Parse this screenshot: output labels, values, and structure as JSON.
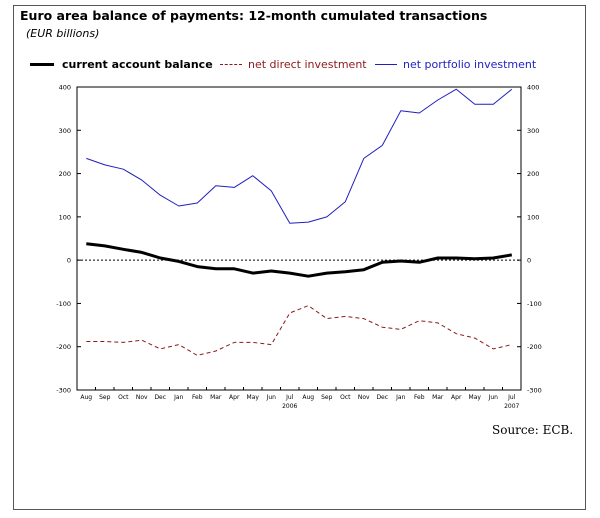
{
  "title": "Euro area balance of payments: 12-month cumulated transactions",
  "subtitle": "(EUR billions)",
  "source": "Source: ECB.",
  "colors": {
    "current_account": "#000000",
    "direct_investment": "#8b1a1a",
    "portfolio_investment": "#1f1fbf"
  },
  "chart_data": {
    "type": "line",
    "title": "Euro area balance of payments: 12-month cumulated transactions",
    "subtitle": "(EUR billions)",
    "x": [
      "Aug",
      "Sep",
      "Oct",
      "Nov",
      "Dec",
      "Jan",
      "Feb",
      "Mar",
      "Apr",
      "May",
      "Jun",
      "Jul",
      "Aug",
      "Sep",
      "Oct",
      "Nov",
      "Dec",
      "Jan",
      "Feb",
      "Mar",
      "Apr",
      "May",
      "Jun",
      "Jul"
    ],
    "year_labels": [
      {
        "label": "2006",
        "index": 11
      },
      {
        "label": "2007",
        "index": 23
      }
    ],
    "ylim": [
      -300,
      400
    ],
    "yticks": [
      -300,
      -200,
      -100,
      0,
      100,
      200,
      300,
      400
    ],
    "grid": false,
    "zero_line": "dotted",
    "legend_position": "top",
    "series": [
      {
        "name": "current account balance",
        "style": "solid-thick",
        "values": [
          38,
          33,
          25,
          18,
          5,
          -3,
          -15,
          -20,
          -20,
          -30,
          -25,
          -30,
          -37,
          -30,
          -27,
          -22,
          -5,
          -2,
          -5,
          5,
          5,
          3,
          5,
          12
        ]
      },
      {
        "name": "net direct investment",
        "style": "dashed",
        "values": [
          -188,
          -188,
          -190,
          -185,
          -205,
          -195,
          -220,
          -210,
          -190,
          -190,
          -195,
          -122,
          -105,
          -135,
          -130,
          -135,
          -155,
          -160,
          -140,
          -145,
          -170,
          -180,
          -205,
          -195
        ]
      },
      {
        "name": "net portfolio investment",
        "style": "solid-thin",
        "values": [
          235,
          220,
          210,
          185,
          150,
          125,
          132,
          172,
          168,
          195,
          160,
          85,
          88,
          100,
          135,
          235,
          265,
          345,
          340,
          370,
          395,
          360,
          360,
          395
        ]
      }
    ]
  }
}
